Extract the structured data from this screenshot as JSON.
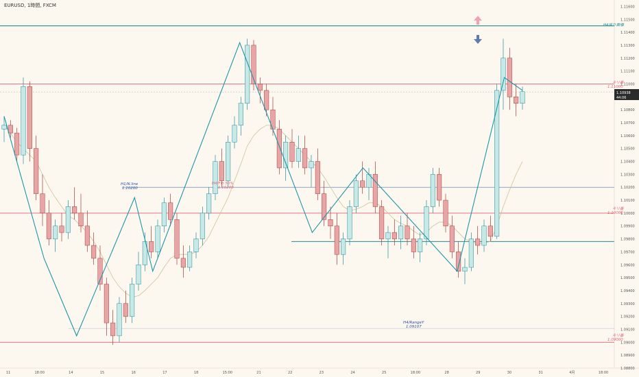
{
  "header": {
    "symbol_title": "EURUSD, 1時間, FXCM"
  },
  "colors": {
    "background": "#fdf8ef",
    "bull_fill": "#c7e9e6",
    "bull_border": "#1f8aa0",
    "bear_fill": "#e8a5a5",
    "bear_border": "#a73a3a",
    "zigzag": "#1a95a8",
    "resistance": "#e06075",
    "h4_line": "#1d8c94",
    "blue_line": "#4a72a8",
    "arrow_up": "#f1a3b2",
    "arrow_down": "#5d7bb1",
    "ma": "#c9c39a"
  },
  "arrows": {
    "up_icon": "arrow-up-icon",
    "down_icon": "arrow-down-icon"
  },
  "annotations": {
    "h4_top_label": "H4戻り高値",
    "r_upper_label": "キリ番",
    "r_upper_price": "1.11000",
    "r_mid_label": "キリ番",
    "r_mid_price": "1.10000",
    "r_bottom_label": "キリ番",
    "r_bottom_price": "1.09000",
    "h1_line_label": "H1/N.line",
    "h1_line_price": "1.10200",
    "fib_label": "H4/Fib 50%",
    "fib_price": "1.10209",
    "h4_range_label": "H4/RangeY",
    "h4_range_price": "1.09107",
    "current_price": "1.10938",
    "countdown": "44:06"
  },
  "chart_data": {
    "type": "candlestick",
    "y_axis": {
      "min": 1.088,
      "max": 1.1165,
      "ticks": [
        "1.11600",
        "1.11500",
        "1.11400",
        "1.11300",
        "1.11200",
        "1.11100",
        "1.11000",
        "1.10900",
        "1.10800",
        "1.10700",
        "1.10600",
        "1.10500",
        "1.10400",
        "1.10300",
        "1.10200",
        "1.10100",
        "1.10000",
        "1.09900",
        "1.09800",
        "1.09700",
        "1.09600",
        "1.09500",
        "1.09400",
        "1.09300",
        "1.09200",
        "1.09100",
        "1.09000",
        "1.08900",
        "1.08800"
      ]
    },
    "x_axis_labels": [
      "11",
      "18:00",
      "14",
      "15",
      "16",
      "17",
      "18",
      "15:00",
      "21",
      "22",
      "23",
      "24",
      "25",
      "18:00",
      "28",
      "29",
      "30",
      "31",
      "4月",
      "18:00"
    ],
    "horizontal_levels": [
      {
        "name": "H4戻り高値",
        "price": 1.1145
      },
      {
        "name": "キリ番 1.11000",
        "price": 1.11
      },
      {
        "name": "current",
        "price": 1.10938
      },
      {
        "name": "H1/N.line",
        "price": 1.102
      },
      {
        "name": "キリ番 1.10000",
        "price": 1.1
      },
      {
        "name": "range low line",
        "price": 1.0978
      },
      {
        "name": "H4/RangeY",
        "price": 1.09107
      },
      {
        "name": "キリ番 1.09000",
        "price": 1.09
      }
    ],
    "zigzag": [
      {
        "t": 0,
        "p": 1.1075
      },
      {
        "t": 22,
        "p": 1.0965
      },
      {
        "t": 40,
        "p": 1.0905
      },
      {
        "t": 72,
        "p": 1.1012
      },
      {
        "t": 82,
        "p": 1.0955
      },
      {
        "t": 130,
        "p": 1.1132
      },
      {
        "t": 170,
        "p": 1.0985
      },
      {
        "t": 198,
        "p": 1.1035
      },
      {
        "t": 250,
        "p": 1.0955
      },
      {
        "t": 276,
        "p": 1.1105
      },
      {
        "t": 286,
        "p": 1.1095
      }
    ],
    "candles": [
      {
        "o": 1.1065,
        "h": 1.1075,
        "l": 1.1055,
        "c": 1.1068
      },
      {
        "o": 1.1068,
        "h": 1.1072,
        "l": 1.1058,
        "c": 1.1062
      },
      {
        "o": 1.1062,
        "h": 1.1066,
        "l": 1.104,
        "c": 1.1045
      },
      {
        "o": 1.1045,
        "h": 1.1105,
        "l": 1.1038,
        "c": 1.1098
      },
      {
        "o": 1.1098,
        "h": 1.1102,
        "l": 1.104,
        "c": 1.105
      },
      {
        "o": 1.105,
        "h": 1.106,
        "l": 1.101,
        "c": 1.1015
      },
      {
        "o": 1.1015,
        "h": 1.103,
        "l": 1.099,
        "c": 1.1
      },
      {
        "o": 1.1,
        "h": 1.101,
        "l": 1.0975,
        "c": 1.098
      },
      {
        "o": 1.098,
        "h": 1.0995,
        "l": 1.097,
        "c": 1.099
      },
      {
        "o": 1.099,
        "h": 1.1,
        "l": 1.0978,
        "c": 1.0985
      },
      {
        "o": 1.0985,
        "h": 1.101,
        "l": 1.098,
        "c": 1.1005
      },
      {
        "o": 1.1005,
        "h": 1.102,
        "l": 1.0995,
        "c": 1.1
      },
      {
        "o": 1.1,
        "h": 1.1015,
        "l": 1.0985,
        "c": 1.099
      },
      {
        "o": 1.099,
        "h": 1.1002,
        "l": 1.097,
        "c": 1.0975
      },
      {
        "o": 1.0975,
        "h": 1.0985,
        "l": 1.096,
        "c": 1.0965
      },
      {
        "o": 1.0965,
        "h": 1.0975,
        "l": 1.094,
        "c": 1.0945
      },
      {
        "o": 1.0945,
        "h": 1.095,
        "l": 1.0905,
        "c": 1.0915
      },
      {
        "o": 1.0915,
        "h": 1.0925,
        "l": 1.0898,
        "c": 1.0905
      },
      {
        "o": 1.0905,
        "h": 1.0935,
        "l": 1.09,
        "c": 1.093
      },
      {
        "o": 1.093,
        "h": 1.094,
        "l": 1.0915,
        "c": 1.092
      },
      {
        "o": 1.092,
        "h": 1.095,
        "l": 1.0915,
        "c": 1.0945
      },
      {
        "o": 1.0945,
        "h": 1.097,
        "l": 1.094,
        "c": 1.096
      },
      {
        "o": 1.096,
        "h": 1.0985,
        "l": 1.0955,
        "c": 1.0978
      },
      {
        "o": 1.0978,
        "h": 1.099,
        "l": 1.0965,
        "c": 1.097
      },
      {
        "o": 1.097,
        "h": 1.0995,
        "l": 1.0965,
        "c": 1.099
      },
      {
        "o": 1.099,
        "h": 1.1012,
        "l": 1.0985,
        "c": 1.1008
      },
      {
        "o": 1.1008,
        "h": 1.1015,
        "l": 1.099,
        "c": 1.0995
      },
      {
        "o": 1.0995,
        "h": 1.1,
        "l": 1.096,
        "c": 1.0965
      },
      {
        "o": 1.0965,
        "h": 1.0975,
        "l": 1.095,
        "c": 1.0958
      },
      {
        "o": 1.0958,
        "h": 1.0975,
        "l": 1.0955,
        "c": 1.097
      },
      {
        "o": 1.097,
        "h": 1.0985,
        "l": 1.0965,
        "c": 1.098
      },
      {
        "o": 1.098,
        "h": 1.1005,
        "l": 1.0975,
        "c": 1.1
      },
      {
        "o": 1.1,
        "h": 1.102,
        "l": 1.0995,
        "c": 1.1015
      },
      {
        "o": 1.1015,
        "h": 1.1045,
        "l": 1.101,
        "c": 1.104
      },
      {
        "o": 1.104,
        "h": 1.105,
        "l": 1.102,
        "c": 1.1025
      },
      {
        "o": 1.1025,
        "h": 1.106,
        "l": 1.102,
        "c": 1.1055
      },
      {
        "o": 1.1055,
        "h": 1.1075,
        "l": 1.105,
        "c": 1.1068
      },
      {
        "o": 1.1068,
        "h": 1.109,
        "l": 1.106,
        "c": 1.1085
      },
      {
        "o": 1.1085,
        "h": 1.1135,
        "l": 1.108,
        "c": 1.113
      },
      {
        "o": 1.113,
        "h": 1.1134,
        "l": 1.1095,
        "c": 1.11
      },
      {
        "o": 1.11,
        "h": 1.1105,
        "l": 1.1085,
        "c": 1.1095
      },
      {
        "o": 1.1095,
        "h": 1.11,
        "l": 1.1075,
        "c": 1.108
      },
      {
        "o": 1.108,
        "h": 1.109,
        "l": 1.106,
        "c": 1.1065
      },
      {
        "o": 1.1065,
        "h": 1.1072,
        "l": 1.103,
        "c": 1.1035
      },
      {
        "o": 1.1035,
        "h": 1.106,
        "l": 1.1025,
        "c": 1.1055
      },
      {
        "o": 1.1055,
        "h": 1.1065,
        "l": 1.1035,
        "c": 1.104
      },
      {
        "o": 1.104,
        "h": 1.106,
        "l": 1.1035,
        "c": 1.105
      },
      {
        "o": 1.105,
        "h": 1.106,
        "l": 1.103,
        "c": 1.1035
      },
      {
        "o": 1.1035,
        "h": 1.1045,
        "l": 1.102,
        "c": 1.104
      },
      {
        "o": 1.104,
        "h": 1.105,
        "l": 1.101,
        "c": 1.1015
      },
      {
        "o": 1.1015,
        "h": 1.1025,
        "l": 1.099,
        "c": 1.0995
      },
      {
        "o": 1.0995,
        "h": 1.1005,
        "l": 1.098,
        "c": 1.099
      },
      {
        "o": 1.099,
        "h": 1.1,
        "l": 1.096,
        "c": 1.0968
      },
      {
        "o": 1.0968,
        "h": 1.0985,
        "l": 1.096,
        "c": 1.098
      },
      {
        "o": 1.098,
        "h": 1.101,
        "l": 1.0975,
        "c": 1.1005
      },
      {
        "o": 1.1005,
        "h": 1.103,
        "l": 1.1,
        "c": 1.1025
      },
      {
        "o": 1.1025,
        "h": 1.104,
        "l": 1.1015,
        "c": 1.102
      },
      {
        "o": 1.102,
        "h": 1.1035,
        "l": 1.101,
        "c": 1.103
      },
      {
        "o": 1.103,
        "h": 1.104,
        "l": 1.1,
        "c": 1.1005
      },
      {
        "o": 1.1005,
        "h": 1.101,
        "l": 1.0975,
        "c": 1.098
      },
      {
        "o": 1.098,
        "h": 1.099,
        "l": 1.0965,
        "c": 1.0985
      },
      {
        "o": 1.0985,
        "h": 1.0995,
        "l": 1.0975,
        "c": 1.098
      },
      {
        "o": 1.098,
        "h": 1.0998,
        "l": 1.0972,
        "c": 1.099
      },
      {
        "o": 1.099,
        "h": 1.1,
        "l": 1.0975,
        "c": 1.098
      },
      {
        "o": 1.098,
        "h": 1.099,
        "l": 1.0965,
        "c": 1.097
      },
      {
        "o": 1.097,
        "h": 1.0985,
        "l": 1.0962,
        "c": 1.098
      },
      {
        "o": 1.098,
        "h": 1.101,
        "l": 1.0975,
        "c": 1.1005
      },
      {
        "o": 1.1005,
        "h": 1.1035,
        "l": 1.1,
        "c": 1.103
      },
      {
        "o": 1.103,
        "h": 1.1035,
        "l": 1.1005,
        "c": 1.101
      },
      {
        "o": 1.101,
        "h": 1.1015,
        "l": 1.0985,
        "c": 1.099
      },
      {
        "o": 1.099,
        "h": 1.0998,
        "l": 1.0965,
        "c": 1.097
      },
      {
        "o": 1.097,
        "h": 1.0978,
        "l": 1.095,
        "c": 1.0955
      },
      {
        "o": 1.0955,
        "h": 1.0965,
        "l": 1.0945,
        "c": 1.0958
      },
      {
        "o": 1.0958,
        "h": 1.0985,
        "l": 1.0955,
        "c": 1.098
      },
      {
        "o": 1.098,
        "h": 1.099,
        "l": 1.0968,
        "c": 1.0975
      },
      {
        "o": 1.0975,
        "h": 1.0995,
        "l": 1.097,
        "c": 1.099
      },
      {
        "o": 1.099,
        "h": 1.0998,
        "l": 1.0978,
        "c": 1.0982
      },
      {
        "o": 1.0982,
        "h": 1.11,
        "l": 1.098,
        "c": 1.1095
      },
      {
        "o": 1.1095,
        "h": 1.1135,
        "l": 1.108,
        "c": 1.112
      },
      {
        "o": 1.112,
        "h": 1.1128,
        "l": 1.108,
        "c": 1.109
      },
      {
        "o": 1.109,
        "h": 1.11,
        "l": 1.1075,
        "c": 1.1085
      },
      {
        "o": 1.1085,
        "h": 1.1098,
        "l": 1.108,
        "c": 1.1094
      }
    ],
    "ma_fast": [
      1.1068,
      1.1062,
      1.1055,
      1.105,
      1.1045,
      1.104,
      1.103,
      1.102,
      1.1012,
      1.1005,
      1.0998,
      1.0995,
      1.099,
      1.0985,
      1.0978,
      1.097,
      1.096,
      1.095,
      1.0943,
      1.0938,
      1.0935,
      1.0936,
      1.094,
      1.0945,
      1.095,
      1.0958,
      1.0965,
      1.0968,
      1.0968,
      1.0968,
      1.097,
      1.0975,
      1.0982,
      1.0992,
      1.1002,
      1.1012,
      1.1025,
      1.1038,
      1.1052,
      1.106,
      1.1065,
      1.1068,
      1.1068,
      1.1065,
      1.106,
      1.1055,
      1.105,
      1.1045,
      1.104,
      1.1035,
      1.1028,
      1.102,
      1.1012,
      1.1005,
      1.1002,
      1.1003,
      1.1005,
      1.1008,
      1.1008,
      1.1005,
      1.1,
      1.0995,
      1.0992,
      1.099,
      1.0986,
      1.0983,
      1.0985,
      1.099,
      1.0993,
      1.0993,
      1.099,
      1.0985,
      1.098,
      1.0978,
      1.0976,
      1.0977,
      1.0978,
      1.099,
      1.1005,
      1.1018,
      1.103,
      1.104
    ]
  }
}
